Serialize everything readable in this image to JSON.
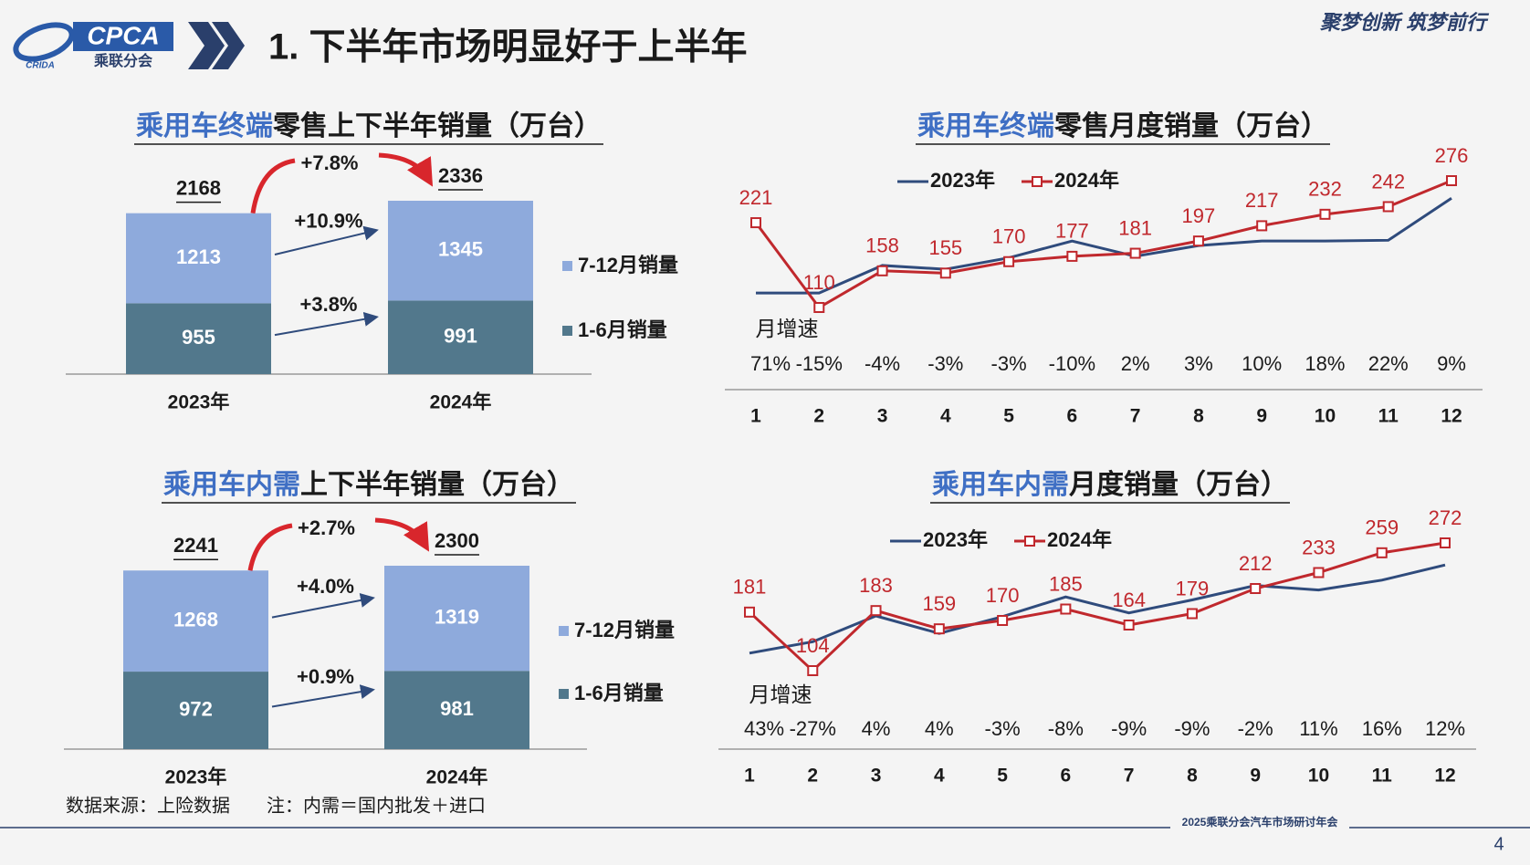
{
  "header": {
    "logo_text": "CPCA",
    "logo_subtext": "乘联分会",
    "logo_small": "CRIDA",
    "title": "1. 下半年市场明显好于上半年",
    "slogan": "聚梦创新 筑梦前行"
  },
  "chart_data": [
    {
      "type": "stacked_bar",
      "title_parts": [
        "乘用车终端",
        "零售上下半年销量（万台）"
      ],
      "categories": [
        "2023年",
        "2024年"
      ],
      "series": [
        {
          "name": "1-6月销量",
          "color": "#52788c",
          "values": [
            955,
            991
          ]
        },
        {
          "name": "7-12月销量",
          "color": "#8eaadc",
          "values": [
            1213,
            1345
          ]
        }
      ],
      "totals": [
        2168,
        2336
      ],
      "series_growth_labels": [
        "+3.8%",
        "+10.9%"
      ],
      "total_growth_label": "+7.8%"
    },
    {
      "type": "line",
      "title_parts": [
        "乘用车终端",
        "零售月度销量（万台）"
      ],
      "categories": [
        "1",
        "2",
        "3",
        "4",
        "5",
        "6",
        "7",
        "8",
        "9",
        "10",
        "11",
        "12"
      ],
      "series": [
        {
          "name": "2023年",
          "color": "#2f4b7c",
          "values": [
            129,
            129,
            165,
            160,
            175,
            197,
            177,
            191,
            197,
            197,
            198,
            253
          ]
        },
        {
          "name": "2024年",
          "color": "#c0282d",
          "marker": "square",
          "data_labels": true,
          "values": [
            221,
            110,
            158,
            155,
            170,
            177,
            181,
            197,
            217,
            232,
            242,
            276
          ]
        }
      ],
      "growth_title": "月增速",
      "growth_labels": [
        "71%",
        "-15%",
        "-4%",
        "-3%",
        "-3%",
        "-10%",
        "2%",
        "3%",
        "10%",
        "18%",
        "22%",
        "9%"
      ]
    },
    {
      "type": "stacked_bar",
      "title_parts": [
        "乘用车内需",
        "上下半年销量（万台）"
      ],
      "categories": [
        "2023年",
        "2024年"
      ],
      "series": [
        {
          "name": "1-6月销量",
          "color": "#52788c",
          "values": [
            972,
            981
          ]
        },
        {
          "name": "7-12月销量",
          "color": "#8eaadc",
          "values": [
            1268,
            1319
          ]
        }
      ],
      "totals": [
        2241,
        2300
      ],
      "series_growth_labels": [
        "+0.9%",
        "+4.0%"
      ],
      "total_growth_label": "+2.7%"
    },
    {
      "type": "line",
      "title_parts": [
        "乘用车内需",
        "月度销量（万台）"
      ],
      "categories": [
        "1",
        "2",
        "3",
        "4",
        "5",
        "6",
        "7",
        "8",
        "9",
        "10",
        "11",
        "12"
      ],
      "series": [
        {
          "name": "2023年",
          "color": "#2f4b7c",
          "values": [
            127,
            142,
            176,
            153,
            175,
            201,
            180,
            197,
            216,
            210,
            223,
            243
          ]
        },
        {
          "name": "2024年",
          "color": "#c0282d",
          "marker": "square",
          "data_labels": true,
          "values": [
            181,
            104,
            183,
            159,
            170,
            185,
            164,
            179,
            212,
            233,
            259,
            272
          ]
        }
      ],
      "growth_title": "月增速",
      "growth_labels": [
        "43%",
        "-27%",
        "4%",
        "4%",
        "-3%",
        "-8%",
        "-9%",
        "-9%",
        "-2%",
        "11%",
        "16%",
        "12%"
      ]
    }
  ],
  "footer": {
    "source": "数据来源：上险数据",
    "note": "注：内需＝国内批发＋进口",
    "event": "2025乘联分会汽车市场研讨年会",
    "page": 4
  }
}
